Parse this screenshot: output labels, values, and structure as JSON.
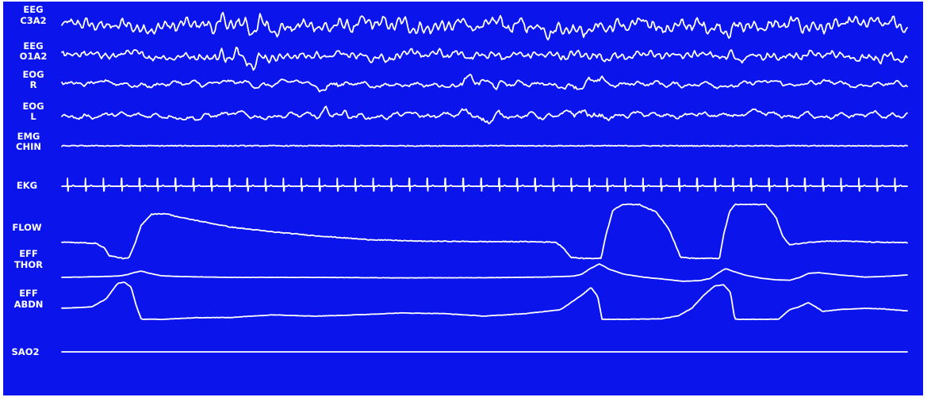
{
  "colors": {
    "background": "#0b14ea",
    "trace": "#ffffff",
    "frame": "#ffffff"
  },
  "chart_data": {
    "type": "line",
    "title": "",
    "grid": false,
    "x": {
      "label": "",
      "range": [
        0,
        100
      ]
    },
    "channels": [
      {
        "id": "eeg_c3a2",
        "label_lines": [
          "EEG",
          "C3A2"
        ],
        "signal": "eeg",
        "amplitude": 0.9
      },
      {
        "id": "eeg_o1a2",
        "label_lines": [
          "EEG",
          "O1A2"
        ],
        "signal": "eeg",
        "amplitude": 0.6
      },
      {
        "id": "eog_r",
        "label_lines": [
          "EOG",
          "R"
        ],
        "signal": "eog",
        "amplitude": 0.6
      },
      {
        "id": "eog_l",
        "label_lines": [
          "EOG",
          "L"
        ],
        "signal": "eog",
        "amplitude": 0.6
      },
      {
        "id": "emg_chin",
        "label_lines": [
          "EMG",
          "CHIN"
        ],
        "signal": "emg",
        "amplitude": 0.05
      },
      {
        "id": "ekg",
        "label_lines": [
          "EKG"
        ],
        "signal": "ekg",
        "beats_per_window": 47
      },
      {
        "id": "flow",
        "label_lines": [
          "FLOW"
        ],
        "signal": "breath",
        "points": [
          [
            0,
            0.3
          ],
          [
            4,
            0.28
          ],
          [
            5,
            0.2
          ],
          [
            5.6,
            0.05
          ],
          [
            7.2,
            0.0
          ],
          [
            7.9,
            0.0
          ],
          [
            8.6,
            0.25
          ],
          [
            9.4,
            0.62
          ],
          [
            10.6,
            0.82
          ],
          [
            12.3,
            0.83
          ],
          [
            14,
            0.76
          ],
          [
            17,
            0.67
          ],
          [
            20,
            0.58
          ],
          [
            25,
            0.49
          ],
          [
            30,
            0.42
          ],
          [
            36,
            0.35
          ],
          [
            42,
            0.32
          ],
          [
            50,
            0.31
          ],
          [
            55,
            0.31
          ],
          [
            58.4,
            0.3
          ],
          [
            59.3,
            0.2
          ],
          [
            60.2,
            0.02
          ],
          [
            61.5,
            0.0
          ],
          [
            63.8,
            0.0
          ],
          [
            64.3,
            0.4
          ],
          [
            65.2,
            0.9
          ],
          [
            66.3,
            1.0
          ],
          [
            68.3,
            1.0
          ],
          [
            70.3,
            0.86
          ],
          [
            71.8,
            0.55
          ],
          [
            72.6,
            0.25
          ],
          [
            73.2,
            0.02
          ],
          [
            74.8,
            0.0
          ],
          [
            77.8,
            0.0
          ],
          [
            78.3,
            0.45
          ],
          [
            79,
            0.87
          ],
          [
            79.6,
            1.0
          ],
          [
            83.3,
            1.0
          ],
          [
            84.5,
            0.75
          ],
          [
            85.3,
            0.4
          ],
          [
            86.1,
            0.25
          ],
          [
            88,
            0.29
          ],
          [
            90,
            0.32
          ],
          [
            93,
            0.32
          ],
          [
            96,
            0.3
          ],
          [
            100,
            0.29
          ]
        ]
      },
      {
        "id": "eff_thor",
        "label_lines": [
          "EFF",
          "THOR"
        ],
        "signal": "breath",
        "points": [
          [
            0,
            0.0
          ],
          [
            4,
            0.04
          ],
          [
            6.6,
            0.08
          ],
          [
            7.8,
            0.18
          ],
          [
            8.4,
            0.28
          ],
          [
            9.4,
            0.4
          ],
          [
            10.4,
            0.25
          ],
          [
            11.8,
            0.1
          ],
          [
            14,
            0.05
          ],
          [
            20,
            0.0
          ],
          [
            30,
            0.0
          ],
          [
            40,
            -0.03
          ],
          [
            50,
            -0.02
          ],
          [
            57,
            0.02
          ],
          [
            59.6,
            0.06
          ],
          [
            60.6,
            0.08
          ],
          [
            61.5,
            0.2
          ],
          [
            62.5,
            0.55
          ],
          [
            63.6,
            0.85
          ],
          [
            64.8,
            0.5
          ],
          [
            66.5,
            0.2
          ],
          [
            69,
            0.0
          ],
          [
            71,
            -0.1
          ],
          [
            73.5,
            -0.25
          ],
          [
            75.5,
            -0.2
          ],
          [
            76.7,
            -0.07
          ],
          [
            77.7,
            0.3
          ],
          [
            78.5,
            0.55
          ],
          [
            79.6,
            0.35
          ],
          [
            81,
            0.12
          ],
          [
            82.7,
            -0.05
          ],
          [
            84.5,
            -0.15
          ],
          [
            86.1,
            -0.18
          ],
          [
            87.3,
            0.0
          ],
          [
            88.3,
            0.25
          ],
          [
            89.5,
            0.3
          ],
          [
            92,
            0.15
          ],
          [
            95,
            0.02
          ],
          [
            97,
            0.05
          ],
          [
            100,
            0.15
          ]
        ]
      },
      {
        "id": "eff_abdn",
        "label_lines": [
          "EFF",
          "ABDN"
        ],
        "signal": "breath",
        "points": [
          [
            0,
            0.0
          ],
          [
            3.5,
            0.05
          ],
          [
            5.2,
            0.35
          ],
          [
            6.6,
            0.95
          ],
          [
            7.4,
            1.0
          ],
          [
            8.2,
            0.8
          ],
          [
            8.8,
            0.1
          ],
          [
            9.4,
            -0.42
          ],
          [
            12,
            -0.42
          ],
          [
            16,
            -0.36
          ],
          [
            20,
            -0.35
          ],
          [
            25,
            -0.25
          ],
          [
            30,
            -0.3
          ],
          [
            35,
            -0.25
          ],
          [
            40,
            -0.18
          ],
          [
            45,
            -0.2
          ],
          [
            50,
            -0.3
          ],
          [
            55,
            -0.2
          ],
          [
            59,
            -0.05
          ],
          [
            61.5,
            0.5
          ],
          [
            62.6,
            0.8
          ],
          [
            63.4,
            0.45
          ],
          [
            63.9,
            -0.42
          ],
          [
            67,
            -0.42
          ],
          [
            71,
            -0.4
          ],
          [
            73,
            -0.28
          ],
          [
            74.5,
            0.0
          ],
          [
            76.1,
            0.55
          ],
          [
            77.2,
            0.85
          ],
          [
            78.3,
            0.9
          ],
          [
            79.1,
            0.6
          ],
          [
            79.6,
            -0.42
          ],
          [
            84.8,
            -0.42
          ],
          [
            86.1,
            -0.05
          ],
          [
            87.2,
            0.05
          ],
          [
            88.3,
            0.22
          ],
          [
            89.2,
            0.05
          ],
          [
            90,
            -0.12
          ],
          [
            92,
            -0.05
          ],
          [
            95,
            0.0
          ],
          [
            97,
            -0.02
          ],
          [
            100,
            -0.1
          ]
        ]
      },
      {
        "id": "sao2",
        "label_lines": [
          "SAO2"
        ],
        "signal": "flat"
      }
    ]
  }
}
